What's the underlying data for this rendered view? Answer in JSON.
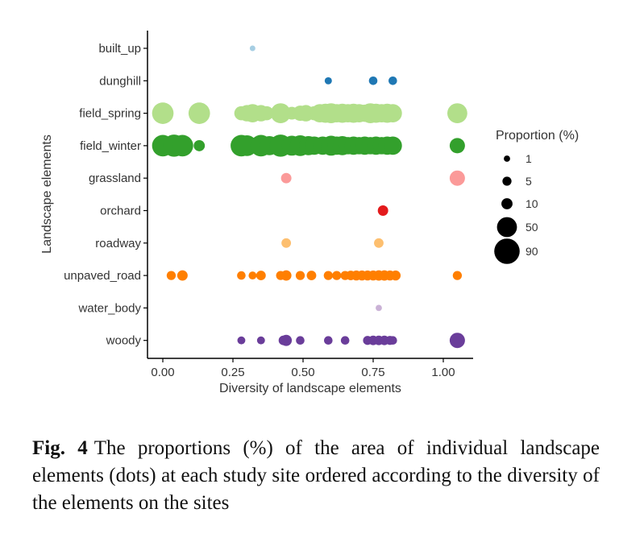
{
  "chart_data": {
    "type": "scatter",
    "xlabel": "Diversity of landscape elements",
    "ylabel": "Landscape elements",
    "xlim": [
      -0.04,
      1.1
    ],
    "xticks": [
      "0.00",
      "0.25",
      "0.50",
      "0.75",
      "1.00"
    ],
    "xtick_values": [
      0.0,
      0.25,
      0.5,
      0.75,
      1.0
    ],
    "categories": [
      "built_up",
      "dunghill",
      "field_spring",
      "field_winter",
      "grassland",
      "orchard",
      "roadway",
      "unpaved_road",
      "water_body",
      "woody"
    ],
    "grid": false,
    "legend": {
      "title": "Proportion (%)",
      "placement": "right",
      "values": [
        1,
        5,
        10,
        50,
        90
      ]
    },
    "series": [
      {
        "category": "built_up",
        "color": "#a6cee3",
        "points": [
          [
            0.32,
            0.5
          ]
        ]
      },
      {
        "category": "dunghill",
        "color": "#1f78b4",
        "points": [
          [
            0.59,
            2
          ],
          [
            0.75,
            4
          ],
          [
            0.82,
            4
          ]
        ]
      },
      {
        "category": "field_spring",
        "color": "#b2df8a",
        "points": [
          [
            0.0,
            60
          ],
          [
            0.13,
            60
          ],
          [
            0.28,
            20
          ],
          [
            0.3,
            30
          ],
          [
            0.32,
            40
          ],
          [
            0.35,
            30
          ],
          [
            0.37,
            20
          ],
          [
            0.42,
            50
          ],
          [
            0.46,
            15
          ],
          [
            0.49,
            25
          ],
          [
            0.51,
            30
          ],
          [
            0.54,
            20
          ],
          [
            0.56,
            40
          ],
          [
            0.58,
            45
          ],
          [
            0.6,
            50
          ],
          [
            0.62,
            40
          ],
          [
            0.64,
            45
          ],
          [
            0.66,
            40
          ],
          [
            0.68,
            45
          ],
          [
            0.7,
            40
          ],
          [
            0.72,
            35
          ],
          [
            0.74,
            50
          ],
          [
            0.76,
            45
          ],
          [
            0.78,
            40
          ],
          [
            0.8,
            45
          ],
          [
            0.82,
            40
          ],
          [
            1.05,
            50
          ]
        ]
      },
      {
        "category": "field_winter",
        "color": "#33a02c",
        "points": [
          [
            0.0,
            60
          ],
          [
            0.04,
            65
          ],
          [
            0.07,
            60
          ],
          [
            0.13,
            10
          ],
          [
            0.28,
            60
          ],
          [
            0.3,
            55
          ],
          [
            0.35,
            60
          ],
          [
            0.38,
            45
          ],
          [
            0.42,
            65
          ],
          [
            0.46,
            50
          ],
          [
            0.49,
            55
          ],
          [
            0.52,
            45
          ],
          [
            0.54,
            40
          ],
          [
            0.57,
            40
          ],
          [
            0.6,
            50
          ],
          [
            0.62,
            40
          ],
          [
            0.64,
            45
          ],
          [
            0.66,
            35
          ],
          [
            0.68,
            40
          ],
          [
            0.7,
            35
          ],
          [
            0.72,
            40
          ],
          [
            0.74,
            35
          ],
          [
            0.76,
            40
          ],
          [
            0.78,
            35
          ],
          [
            0.8,
            40
          ],
          [
            0.82,
            40
          ],
          [
            1.05,
            25
          ]
        ]
      },
      {
        "category": "grassland",
        "color": "#fb9a99",
        "points": [
          [
            0.44,
            8
          ],
          [
            1.05,
            25
          ]
        ]
      },
      {
        "category": "orchard",
        "color": "#e31a1c",
        "points": [
          [
            0.785,
            8
          ]
        ]
      },
      {
        "category": "roadway",
        "color": "#fdbf6f",
        "points": [
          [
            0.44,
            6
          ],
          [
            0.77,
            6
          ]
        ]
      },
      {
        "category": "unpaved_road",
        "color": "#ff7f00",
        "points": [
          [
            0.03,
            5
          ],
          [
            0.07,
            8
          ],
          [
            0.28,
            4
          ],
          [
            0.32,
            3
          ],
          [
            0.35,
            6
          ],
          [
            0.42,
            5
          ],
          [
            0.44,
            8
          ],
          [
            0.49,
            5
          ],
          [
            0.53,
            6
          ],
          [
            0.59,
            5
          ],
          [
            0.62,
            5
          ],
          [
            0.65,
            5
          ],
          [
            0.67,
            6
          ],
          [
            0.69,
            7
          ],
          [
            0.71,
            7
          ],
          [
            0.73,
            7
          ],
          [
            0.75,
            7
          ],
          [
            0.77,
            8
          ],
          [
            0.79,
            8
          ],
          [
            0.81,
            7
          ],
          [
            0.83,
            7
          ],
          [
            1.05,
            5
          ]
        ]
      },
      {
        "category": "water_body",
        "color": "#cab2d6",
        "points": [
          [
            0.77,
            1
          ]
        ]
      },
      {
        "category": "woody",
        "color": "#6a3d9a",
        "points": [
          [
            0.28,
            3
          ],
          [
            0.35,
            3
          ],
          [
            0.43,
            6
          ],
          [
            0.44,
            10
          ],
          [
            0.49,
            4
          ],
          [
            0.59,
            4
          ],
          [
            0.65,
            4
          ],
          [
            0.73,
            5
          ],
          [
            0.75,
            6
          ],
          [
            0.77,
            6
          ],
          [
            0.79,
            6
          ],
          [
            0.81,
            5
          ],
          [
            0.82,
            4
          ],
          [
            1.05,
            25
          ]
        ]
      }
    ]
  },
  "caption": {
    "label": "Fig. 4",
    "text": "The proportions (%) of the area of individual landscape elements (dots) at each study site ordered according to the diversity of the elements on the sites"
  }
}
